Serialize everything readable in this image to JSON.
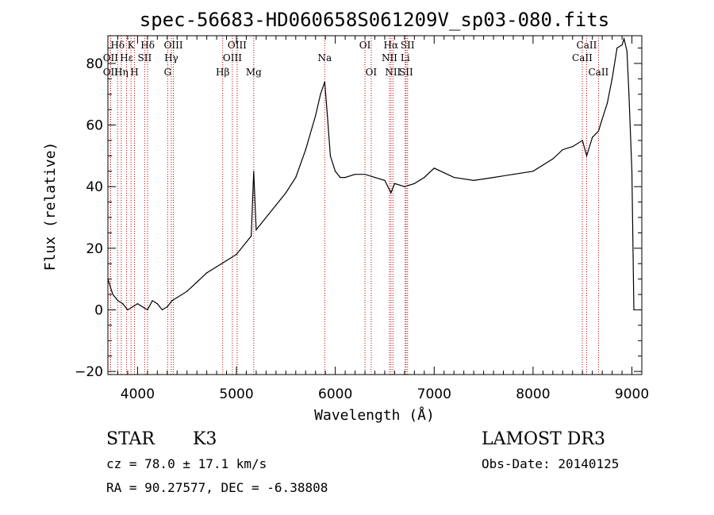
{
  "chart_data": {
    "type": "line",
    "title": "spec-56683-HD060658S061209V_sp03-080.fits",
    "xlabel": "Wavelength (Å)",
    "ylabel": "Flux (relative)",
    "xlim": [
      3700,
      9100
    ],
    "ylim": [
      -21,
      89
    ],
    "x_ticks": [
      4000,
      5000,
      6000,
      7000,
      8000,
      9000
    ],
    "y_ticks": [
      -20,
      0,
      20,
      40,
      60,
      80
    ],
    "x_tick_labels": [
      "4000",
      "5000",
      "6000",
      "7000",
      "8000",
      "9000"
    ],
    "y_tick_labels": [
      "−20",
      "0",
      "20",
      "40",
      "60",
      "80"
    ],
    "series": [
      {
        "color": "#000000",
        "x": [
          3700,
          3750,
          3800,
          3850,
          3900,
          3950,
          4000,
          4050,
          4100,
          4150,
          4200,
          4250,
          4300,
          4350,
          4400,
          4500,
          4600,
          4700,
          4800,
          4900,
          5000,
          5100,
          5150,
          5175,
          5200,
          5300,
          5400,
          5500,
          5600,
          5700,
          5800,
          5850,
          5893,
          5920,
          5950,
          6000,
          6050,
          6100,
          6200,
          6300,
          6400,
          6500,
          6563,
          6600,
          6700,
          6800,
          6900,
          7000,
          7200,
          7400,
          7600,
          7800,
          8000,
          8200,
          8300,
          8400,
          8500,
          8542,
          8600,
          8662,
          8700,
          8750,
          8800,
          8850,
          8900,
          8920,
          8950,
          8970,
          9000,
          9020
        ],
        "y": [
          10,
          5,
          3,
          2,
          0,
          1,
          2,
          1,
          0,
          3,
          2,
          0,
          1,
          3,
          4,
          6,
          9,
          12,
          14,
          16,
          18,
          22,
          24,
          45,
          26,
          30,
          34,
          38,
          43,
          52,
          63,
          70,
          74,
          63,
          50,
          45,
          43,
          43,
          44,
          44,
          43,
          42,
          38,
          41,
          40,
          41,
          43,
          46,
          43,
          42,
          43,
          44,
          45,
          49,
          52,
          53,
          55,
          50,
          56,
          58,
          62,
          67,
          75,
          85,
          86,
          88,
          84,
          70,
          45,
          0
        ]
      }
    ],
    "line_ids": [
      {
        "label": "Hδ",
        "x": 3798,
        "row": 0
      },
      {
        "label": "OII",
        "x": 3727,
        "row": 1
      },
      {
        "label": "OII",
        "x": 3727,
        "row": 2
      },
      {
        "label": "Hε",
        "x": 3889,
        "row": 1
      },
      {
        "label": "Hη",
        "x": 3835,
        "row": 2
      },
      {
        "label": "K",
        "x": 3934,
        "row": 0
      },
      {
        "label": "H",
        "x": 3969,
        "row": 2
      },
      {
        "label": "Hδ",
        "x": 4102,
        "row": 0
      },
      {
        "label": "SII",
        "x": 4072,
        "row": 1
      },
      {
        "label": "OIII",
        "x": 4363,
        "row": 0
      },
      {
        "label": "Hγ",
        "x": 4341,
        "row": 1
      },
      {
        "label": "G",
        "x": 4305,
        "row": 2
      },
      {
        "label": "OIII",
        "x": 5007,
        "row": 0
      },
      {
        "label": "OIII",
        "x": 4959,
        "row": 1
      },
      {
        "label": "Hβ",
        "x": 4861,
        "row": 2
      },
      {
        "label": "Mg",
        "x": 5175,
        "row": 2
      },
      {
        "label": "Na",
        "x": 5893,
        "row": 1
      },
      {
        "label": "OI",
        "x": 6300,
        "row": 0
      },
      {
        "label": "OI",
        "x": 6363,
        "row": 2
      },
      {
        "label": "Hα",
        "x": 6563,
        "row": 0
      },
      {
        "label": "NII",
        "x": 6548,
        "row": 1
      },
      {
        "label": "NII",
        "x": 6583,
        "row": 2
      },
      {
        "label": "SII",
        "x": 6731,
        "row": 0
      },
      {
        "label": "Li",
        "x": 6707,
        "row": 1
      },
      {
        "label": "SII",
        "x": 6716,
        "row": 2
      },
      {
        "label": "CaII",
        "x": 8542,
        "row": 0
      },
      {
        "label": "CaII",
        "x": 8498,
        "row": 1
      },
      {
        "label": "CaII",
        "x": 8662,
        "row": 2
      }
    ],
    "grid": false,
    "legend": "none"
  },
  "info": {
    "class_label": "STAR",
    "subclass": "K3",
    "survey": "LAMOST DR3",
    "redshift": "cz = 78.0 ± 17.1 km/s",
    "obs_date": "Obs-Date: 20140125",
    "coords": "RA =  90.27577, DEC =  -6.38808"
  },
  "colors": {
    "spectrum": "#000000",
    "line_markers": "#c00000",
    "background": "#ffffff"
  }
}
